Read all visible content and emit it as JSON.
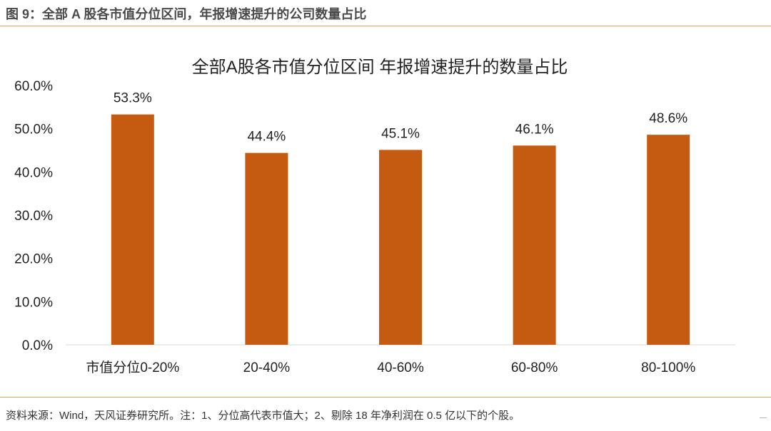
{
  "figure": {
    "title": "图 9：全部 A 股各市值分位区间，年报增速提升的公司数量占比",
    "source_note": "资料来源：Wind，天风证券研究所。注：1、分位高代表市值大；2、剔除 18 年净利润在 0.5 亿以下的个股。"
  },
  "colors": {
    "bar": "#c55a11",
    "accent_line": "#e5a15a",
    "axis": "#d9d9d9"
  },
  "chart_data": {
    "type": "bar",
    "title": "全部A股各市值分位区间 年报增速提升的数量占比",
    "categories": [
      "市值分位0-20%",
      "20-40%",
      "40-60%",
      "60-80%",
      "80-100%"
    ],
    "values": [
      53.3,
      44.4,
      45.1,
      46.1,
      48.6
    ],
    "data_labels": [
      "53.3%",
      "44.4%",
      "45.1%",
      "46.1%",
      "48.6%"
    ],
    "ylim": [
      0,
      60
    ],
    "yticks": [
      "0.0%",
      "10.0%",
      "20.0%",
      "30.0%",
      "40.0%",
      "50.0%",
      "60.0%"
    ],
    "xlabel": "",
    "ylabel": "",
    "grid": false,
    "legend": "none"
  }
}
